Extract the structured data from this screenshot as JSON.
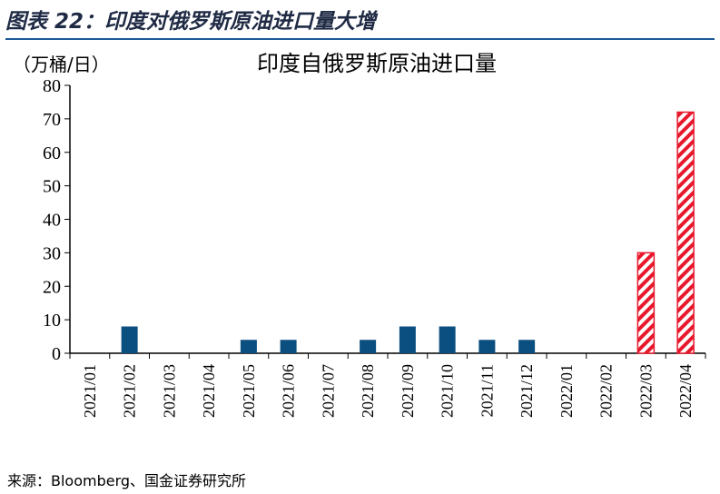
{
  "figure": {
    "title": "图表 22：印度对俄罗斯原油进口量大增",
    "source": "来源：Bloomberg、国金证券研究所"
  },
  "chart_data": {
    "type": "bar",
    "title": "印度自俄罗斯原油进口量",
    "unit_label": "（万桶/日）",
    "categories": [
      "2021/01",
      "2021/02",
      "2021/03",
      "2021/04",
      "2021/05",
      "2021/06",
      "2021/07",
      "2021/08",
      "2021/09",
      "2021/10",
      "2021/11",
      "2021/12",
      "2022/01",
      "2022/02",
      "2022/03",
      "2022/04"
    ],
    "values": [
      0,
      8,
      0,
      0,
      4,
      4,
      0,
      4,
      8,
      8,
      4,
      4,
      0,
      0,
      30,
      72
    ],
    "hatched_categories": [
      "2022/03",
      "2022/04"
    ],
    "ylim": [
      0,
      80
    ],
    "yticks": [
      0,
      10,
      20,
      30,
      40,
      50,
      60,
      70,
      80
    ],
    "grid": false,
    "legend": "none",
    "colors": {
      "bar": "#0b4f80",
      "highlight": "#e8192c",
      "rule": "#1c5a96",
      "title": "#1f2a44"
    }
  }
}
